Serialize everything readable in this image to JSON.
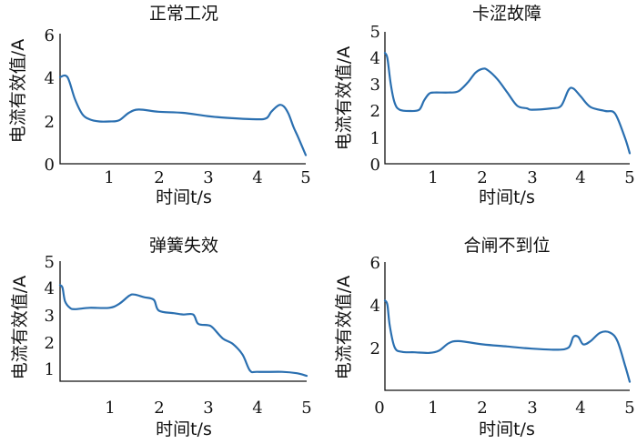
{
  "colors": {
    "line": "#2a6fb0",
    "axis": "#111111"
  },
  "chart_data": [
    {
      "type": "line",
      "title": "正常工况",
      "xlabel": "时间t/s",
      "ylabel": "电流有效值/A",
      "xlim": [
        0,
        5
      ],
      "ylim": [
        0,
        6
      ],
      "xticks": [
        "1",
        "2",
        "3",
        "4",
        "5"
      ],
      "yticks": [
        "0",
        "2",
        "4",
        "6"
      ],
      "series": [
        {
          "x": [
            0,
            0.15,
            0.3,
            0.45,
            0.6,
            0.8,
            1.0,
            1.2,
            1.4,
            1.6,
            2.0,
            2.5,
            3.0,
            3.5,
            4.0,
            4.2,
            4.3,
            4.45,
            4.55,
            4.65,
            4.75,
            4.85,
            5.0
          ],
          "y": [
            4.0,
            4.0,
            3.0,
            2.3,
            2.05,
            1.95,
            1.95,
            2.0,
            2.35,
            2.5,
            2.4,
            2.35,
            2.2,
            2.1,
            2.05,
            2.1,
            2.4,
            2.7,
            2.65,
            2.3,
            1.7,
            1.2,
            0.4
          ]
        }
      ]
    },
    {
      "type": "line",
      "title": "卡涩故障",
      "xlabel": "时间t/s",
      "ylabel": "电流有效值/A",
      "xlim": [
        0,
        5
      ],
      "ylim": [
        0,
        5
      ],
      "xticks": [
        "1",
        "2",
        "3",
        "4",
        "5"
      ],
      "yticks": [
        "0",
        "1",
        "2",
        "3",
        "4",
        "5"
      ],
      "series": [
        {
          "x": [
            0,
            0.05,
            0.12,
            0.2,
            0.3,
            0.5,
            0.7,
            0.8,
            0.9,
            1.0,
            1.3,
            1.5,
            1.7,
            1.85,
            2.0,
            2.1,
            2.3,
            2.5,
            2.7,
            2.9,
            3.0,
            3.4,
            3.6,
            3.75,
            3.85,
            4.0,
            4.2,
            4.5,
            4.7,
            4.9,
            5.0
          ],
          "y": [
            4.2,
            4.0,
            3.0,
            2.3,
            2.05,
            2.0,
            2.05,
            2.4,
            2.65,
            2.7,
            2.7,
            2.75,
            3.1,
            3.45,
            3.6,
            3.55,
            3.2,
            2.7,
            2.2,
            2.1,
            2.05,
            2.1,
            2.2,
            2.8,
            2.85,
            2.55,
            2.15,
            2.0,
            1.9,
            1.0,
            0.4
          ]
        }
      ]
    },
    {
      "type": "line",
      "title": "弹簧失效",
      "xlabel": "时间t/s",
      "ylabel": "电流有效值/A",
      "xlim": [
        0,
        5
      ],
      "ylim": [
        0.5,
        5
      ],
      "xticks": [
        "1",
        "2",
        "3",
        "4",
        "5"
      ],
      "yticks": [
        "1",
        "2",
        "3",
        "4",
        "5"
      ],
      "series": [
        {
          "x": [
            0,
            0.05,
            0.1,
            0.2,
            0.3,
            0.6,
            1.0,
            1.2,
            1.4,
            1.5,
            1.7,
            1.9,
            2.0,
            2.3,
            2.5,
            2.7,
            2.8,
            3.0,
            3.1,
            3.3,
            3.5,
            3.7,
            3.85,
            4.0,
            4.5,
            4.8,
            5.0
          ],
          "y": [
            4.1,
            4.0,
            3.5,
            3.25,
            3.2,
            3.25,
            3.25,
            3.4,
            3.7,
            3.75,
            3.65,
            3.55,
            3.15,
            3.05,
            3.0,
            3.0,
            2.65,
            2.6,
            2.5,
            2.1,
            1.9,
            1.5,
            0.9,
            0.85,
            0.85,
            0.8,
            0.7
          ]
        }
      ]
    },
    {
      "type": "line",
      "title": "合闸不到位",
      "xlabel": "时间t/s",
      "ylabel": "电流有效值/A",
      "xlim": [
        0,
        5
      ],
      "ylim": [
        0,
        6
      ],
      "xticks": [
        "0",
        "1",
        "2",
        "3",
        "4",
        "5"
      ],
      "yticks": [
        "2",
        "4",
        "6"
      ],
      "series": [
        {
          "x": [
            0,
            0.05,
            0.1,
            0.2,
            0.35,
            0.6,
            0.9,
            1.1,
            1.3,
            1.5,
            2.0,
            2.5,
            3.0,
            3.5,
            3.75,
            3.85,
            3.95,
            4.05,
            4.2,
            4.4,
            4.6,
            4.75,
            4.9,
            5.0
          ],
          "y": [
            4.2,
            4.0,
            3.0,
            2.0,
            1.8,
            1.78,
            1.75,
            1.85,
            2.2,
            2.3,
            2.15,
            2.05,
            1.95,
            1.9,
            2.0,
            2.5,
            2.5,
            2.15,
            2.3,
            2.7,
            2.7,
            2.3,
            1.2,
            0.4
          ]
        }
      ]
    }
  ]
}
